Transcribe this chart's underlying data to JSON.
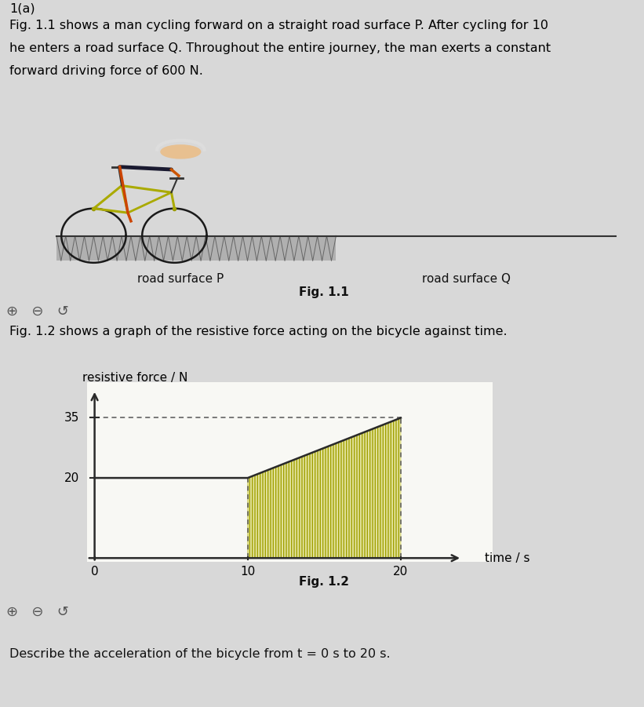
{
  "title_label": "1(a)",
  "paragraph1_line1": "Fig. 1.1 shows a man cycling forward on a straight road surface P. After cycling for 10",
  "paragraph1_line2": "he enters a road surface Q. Throughout the entire journey, the man exerts a constant",
  "paragraph1_line3": "forward driving force of 600 N.",
  "road_label_p": "road surface P",
  "road_label_q": "road surface Q",
  "fig11_label": "Fig. 1.1",
  "para2": "Fig. 1.2 shows a graph of the resistive force acting on the bicycle against time.",
  "ylabel": "resistive force / N",
  "xlabel": "time / s",
  "fig12_label": "Fig. 1.2",
  "bottom_text": "Describe the acceleration of the bicycle from t = 0 s to 20 s.",
  "ytick_20": 20,
  "ytick_35": 35,
  "xtick_0": 0,
  "xtick_10": 10,
  "xtick_20": 20,
  "graph_line_x": [
    0,
    10,
    20
  ],
  "graph_line_y": [
    20,
    20,
    35
  ],
  "bg_color": "#d8d8d8",
  "panel_color": "#ebebeb",
  "graph_bg": "#f8f8f4",
  "line_color": "#2a2a2a",
  "dashed_color": "#555555",
  "hatch_fill_color": "#d8d870",
  "font_size_body": 11.5,
  "font_size_label": 11,
  "font_size_tick": 11,
  "font_size_fig": 11
}
